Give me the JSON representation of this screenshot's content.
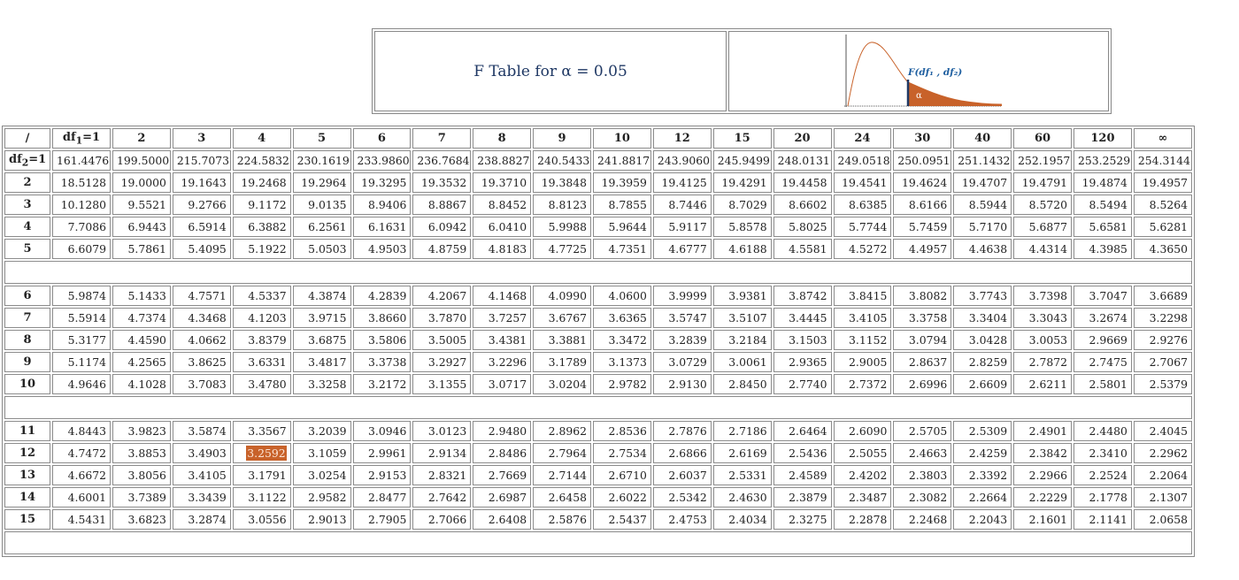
{
  "header": {
    "title": "F Table for α = 0.05",
    "figure_label": "F(df₁ , df₂)",
    "alpha_label": "α",
    "colors": {
      "curve": "#c8622a",
      "shade": "#c8622a",
      "label": "#1f5fa0",
      "axis": "#555555"
    }
  },
  "table": {
    "corner": "/",
    "df1_prefix": "df",
    "df1_sub": "1",
    "df1_first": "=1",
    "df2_prefix": "df",
    "df2_sub": "2",
    "df2_first": "=1",
    "columns": [
      "2",
      "3",
      "4",
      "5",
      "6",
      "7",
      "8",
      "9",
      "10",
      "12",
      "15",
      "20",
      "24",
      "30",
      "40",
      "60",
      "120",
      "∞"
    ],
    "highlight": {
      "row": "12",
      "col": "4"
    },
    "groups": [
      [
        {
          "label": "1",
          "values": [
            "161.4476",
            "199.5000",
            "215.7073",
            "224.5832",
            "230.1619",
            "233.9860",
            "236.7684",
            "238.8827",
            "240.5433",
            "241.8817",
            "243.9060",
            "245.9499",
            "248.0131",
            "249.0518",
            "250.0951",
            "251.1432",
            "252.1957",
            "253.2529",
            "254.3144"
          ]
        },
        {
          "label": "2",
          "values": [
            "18.5128",
            "19.0000",
            "19.1643",
            "19.2468",
            "19.2964",
            "19.3295",
            "19.3532",
            "19.3710",
            "19.3848",
            "19.3959",
            "19.4125",
            "19.4291",
            "19.4458",
            "19.4541",
            "19.4624",
            "19.4707",
            "19.4791",
            "19.4874",
            "19.4957"
          ]
        },
        {
          "label": "3",
          "values": [
            "10.1280",
            "9.5521",
            "9.2766",
            "9.1172",
            "9.0135",
            "8.9406",
            "8.8867",
            "8.8452",
            "8.8123",
            "8.7855",
            "8.7446",
            "8.7029",
            "8.6602",
            "8.6385",
            "8.6166",
            "8.5944",
            "8.5720",
            "8.5494",
            "8.5264"
          ]
        },
        {
          "label": "4",
          "values": [
            "7.7086",
            "6.9443",
            "6.5914",
            "6.3882",
            "6.2561",
            "6.1631",
            "6.0942",
            "6.0410",
            "5.9988",
            "5.9644",
            "5.9117",
            "5.8578",
            "5.8025",
            "5.7744",
            "5.7459",
            "5.7170",
            "5.6877",
            "5.6581",
            "5.6281"
          ]
        },
        {
          "label": "5",
          "values": [
            "6.6079",
            "5.7861",
            "5.4095",
            "5.1922",
            "5.0503",
            "4.9503",
            "4.8759",
            "4.8183",
            "4.7725",
            "4.7351",
            "4.6777",
            "4.6188",
            "4.5581",
            "4.5272",
            "4.4957",
            "4.4638",
            "4.4314",
            "4.3985",
            "4.3650"
          ]
        }
      ],
      [
        {
          "label": "6",
          "values": [
            "5.9874",
            "5.1433",
            "4.7571",
            "4.5337",
            "4.3874",
            "4.2839",
            "4.2067",
            "4.1468",
            "4.0990",
            "4.0600",
            "3.9999",
            "3.9381",
            "3.8742",
            "3.8415",
            "3.8082",
            "3.7743",
            "3.7398",
            "3.7047",
            "3.6689"
          ]
        },
        {
          "label": "7",
          "values": [
            "5.5914",
            "4.7374",
            "4.3468",
            "4.1203",
            "3.9715",
            "3.8660",
            "3.7870",
            "3.7257",
            "3.6767",
            "3.6365",
            "3.5747",
            "3.5107",
            "3.4445",
            "3.4105",
            "3.3758",
            "3.3404",
            "3.3043",
            "3.2674",
            "3.2298"
          ]
        },
        {
          "label": "8",
          "values": [
            "5.3177",
            "4.4590",
            "4.0662",
            "3.8379",
            "3.6875",
            "3.5806",
            "3.5005",
            "3.4381",
            "3.3881",
            "3.3472",
            "3.2839",
            "3.2184",
            "3.1503",
            "3.1152",
            "3.0794",
            "3.0428",
            "3.0053",
            "2.9669",
            "2.9276"
          ]
        },
        {
          "label": "9",
          "values": [
            "5.1174",
            "4.2565",
            "3.8625",
            "3.6331",
            "3.4817",
            "3.3738",
            "3.2927",
            "3.2296",
            "3.1789",
            "3.1373",
            "3.0729",
            "3.0061",
            "2.9365",
            "2.9005",
            "2.8637",
            "2.8259",
            "2.7872",
            "2.7475",
            "2.7067"
          ]
        },
        {
          "label": "10",
          "values": [
            "4.9646",
            "4.1028",
            "3.7083",
            "3.4780",
            "3.3258",
            "3.2172",
            "3.1355",
            "3.0717",
            "3.0204",
            "2.9782",
            "2.9130",
            "2.8450",
            "2.7740",
            "2.7372",
            "2.6996",
            "2.6609",
            "2.6211",
            "2.5801",
            "2.5379"
          ]
        }
      ],
      [
        {
          "label": "11",
          "values": [
            "4.8443",
            "3.9823",
            "3.5874",
            "3.3567",
            "3.2039",
            "3.0946",
            "3.0123",
            "2.9480",
            "2.8962",
            "2.8536",
            "2.7876",
            "2.7186",
            "2.6464",
            "2.6090",
            "2.5705",
            "2.5309",
            "2.4901",
            "2.4480",
            "2.4045"
          ]
        },
        {
          "label": "12",
          "values": [
            "4.7472",
            "3.8853",
            "3.4903",
            "3.2592",
            "3.1059",
            "2.9961",
            "2.9134",
            "2.8486",
            "2.7964",
            "2.7534",
            "2.6866",
            "2.6169",
            "2.5436",
            "2.5055",
            "2.4663",
            "2.4259",
            "2.3842",
            "2.3410",
            "2.2962"
          ]
        },
        {
          "label": "13",
          "values": [
            "4.6672",
            "3.8056",
            "3.4105",
            "3.1791",
            "3.0254",
            "2.9153",
            "2.8321",
            "2.7669",
            "2.7144",
            "2.6710",
            "2.6037",
            "2.5331",
            "2.4589",
            "2.4202",
            "2.3803",
            "2.3392",
            "2.2966",
            "2.2524",
            "2.2064"
          ]
        },
        {
          "label": "14",
          "values": [
            "4.6001",
            "3.7389",
            "3.3439",
            "3.1122",
            "2.9582",
            "2.8477",
            "2.7642",
            "2.6987",
            "2.6458",
            "2.6022",
            "2.5342",
            "2.4630",
            "2.3879",
            "2.3487",
            "2.3082",
            "2.2664",
            "2.2229",
            "2.1778",
            "2.1307"
          ]
        },
        {
          "label": "15",
          "values": [
            "4.5431",
            "3.6823",
            "3.2874",
            "3.0556",
            "2.9013",
            "2.7905",
            "2.7066",
            "2.6408",
            "2.5876",
            "2.5437",
            "2.4753",
            "2.4034",
            "2.3275",
            "2.2878",
            "2.2468",
            "2.2043",
            "2.1601",
            "2.1141",
            "2.0658"
          ]
        }
      ]
    ]
  }
}
